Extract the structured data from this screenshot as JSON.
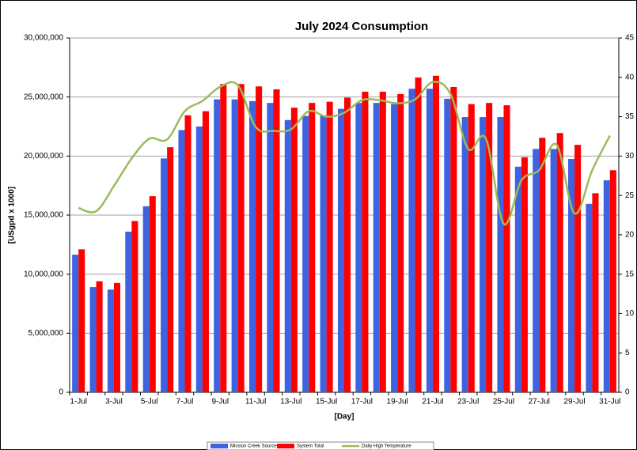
{
  "chart_data": {
    "type": "bar-line",
    "title": "July 2024 Consumption",
    "x_label": "[Day]",
    "y_label": "[USgpd x 1000]",
    "categories": [
      "1-Jul",
      null,
      "3-Jul",
      null,
      "5-Jul",
      null,
      "7-Jul",
      null,
      "9-Jul",
      null,
      "11-Jul",
      null,
      "13-Jul",
      null,
      "15-Jul",
      null,
      "17-Jul",
      null,
      "19-Jul",
      null,
      "21-Jul",
      null,
      "23-Jul",
      null,
      "25-Jul",
      null,
      "27-Jul",
      null,
      "29-Jul",
      null,
      "31-Jul"
    ],
    "series": [
      {
        "name": "Mission Creek Source",
        "color": "#3f63e0",
        "type": "bar",
        "values": [
          11650000,
          8900000,
          8700000,
          13600000,
          15750000,
          19800000,
          22200000,
          22500000,
          24800000,
          24800000,
          24650000,
          24500000,
          23050000,
          23400000,
          23450000,
          24000000,
          24500000,
          24500000,
          24400000,
          25700000,
          25700000,
          24850000,
          23300000,
          23300000,
          23300000,
          19100000,
          20600000,
          20600000,
          19750000,
          15950000,
          17950000
        ]
      },
      {
        "name": "System Total",
        "color": "#ff0000",
        "type": "bar",
        "values": [
          12100000,
          9400000,
          9250000,
          14500000,
          16600000,
          20750000,
          23450000,
          23800000,
          26100000,
          26100000,
          25900000,
          25650000,
          24100000,
          24500000,
          24600000,
          24950000,
          25450000,
          25450000,
          25250000,
          26650000,
          26800000,
          25850000,
          24400000,
          24500000,
          24300000,
          19900000,
          21550000,
          21950000,
          20950000,
          16850000,
          18800000
        ]
      },
      {
        "name": "Daily High Temperature",
        "color": "#9bbb59",
        "type": "line",
        "axis": "y2",
        "values": [
          23.4,
          23,
          26.2,
          29.7,
          32.2,
          32.1,
          35.7,
          37,
          38.8,
          39,
          33.7,
          33.2,
          33.4,
          35.7,
          35,
          35.5,
          37.1,
          37.1,
          36.7,
          37.2,
          39.4,
          37.9,
          30.9,
          32.2,
          21.4,
          26.9,
          28.2,
          31.4,
          22.7,
          28.2,
          32.6
        ]
      }
    ],
    "ylim": [
      0,
      30000000
    ],
    "yticks": [
      {
        "value": 0,
        "label": "0"
      },
      {
        "value": 5000000,
        "label": "5,000,000"
      },
      {
        "value": 10000000,
        "label": "10,000,000"
      },
      {
        "value": 15000000,
        "label": "15,000,000"
      },
      {
        "value": 20000000,
        "label": "20,000,000"
      },
      {
        "value": 25000000,
        "label": "25,000,000"
      },
      {
        "value": 30000000,
        "label": "30,000,000"
      }
    ],
    "y2lim": [
      0,
      45
    ],
    "y2ticks": [
      0,
      5,
      10,
      15,
      20,
      25,
      30,
      35,
      40,
      45
    ],
    "grid": true,
    "legend": "bottom"
  }
}
